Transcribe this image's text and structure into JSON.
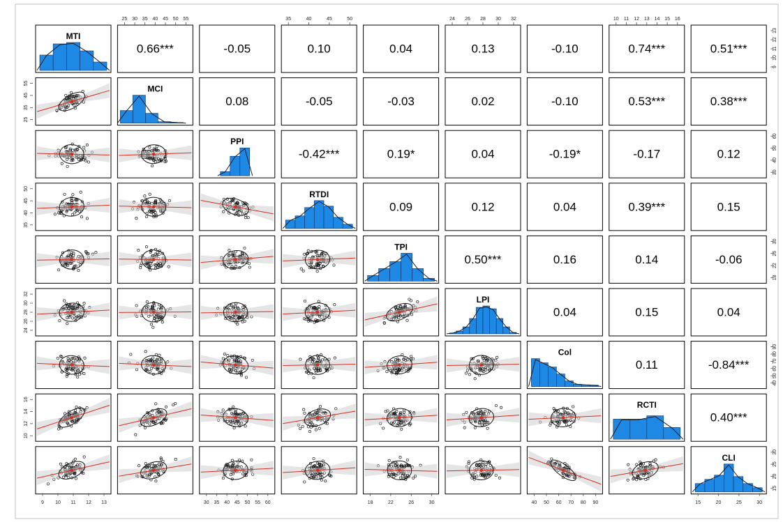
{
  "chart_data": {
    "type": "scatter-matrix",
    "title": "",
    "variables": [
      "MTI",
      "MCI",
      "PPI",
      "RTDI",
      "TPI",
      "LPI",
      "Col",
      "RCTI",
      "CLI"
    ],
    "correlations": [
      [
        "",
        "0.66***",
        "-0.05",
        "0.10",
        "0.04",
        "0.13",
        "-0.10",
        "0.74***",
        "0.51***"
      ],
      [
        "",
        "",
        "0.08",
        "-0.05",
        "-0.03",
        "0.02",
        "-0.10",
        "0.53***",
        "0.38***"
      ],
      [
        "",
        "",
        "",
        "-0.42***",
        "0.19*",
        "0.04",
        "-0.19*",
        "-0.17",
        "0.12"
      ],
      [
        "",
        "",
        "",
        "",
        "0.09",
        "0.12",
        "0.04",
        "0.39***",
        "0.15"
      ],
      [
        "",
        "",
        "",
        "",
        "",
        "0.50***",
        "0.16",
        "0.14",
        "-0.06"
      ],
      [
        "",
        "",
        "",
        "",
        "",
        "",
        "0.04",
        "0.15",
        "0.04"
      ],
      [
        "",
        "",
        "",
        "",
        "",
        "",
        "",
        "0.11",
        "-0.84***"
      ],
      [
        "",
        "",
        "",
        "",
        "",
        "",
        "",
        "",
        "0.40***"
      ],
      [
        "",
        "",
        "",
        "",
        "",
        "",
        "",
        "",
        ""
      ]
    ],
    "correlation_values": [
      [
        1,
        0.66,
        -0.05,
        0.1,
        0.04,
        0.13,
        -0.1,
        0.74,
        0.51
      ],
      [
        0.66,
        1,
        0.08,
        -0.05,
        -0.03,
        0.02,
        -0.1,
        0.53,
        0.38
      ],
      [
        -0.05,
        0.08,
        1,
        -0.42,
        0.19,
        0.04,
        -0.19,
        -0.17,
        0.12
      ],
      [
        0.1,
        -0.05,
        -0.42,
        1,
        0.09,
        0.12,
        0.04,
        0.39,
        0.15
      ],
      [
        0.04,
        -0.03,
        0.19,
        0.09,
        1,
        0.5,
        0.16,
        0.14,
        -0.06
      ],
      [
        0.13,
        0.02,
        0.04,
        0.12,
        0.5,
        1,
        0.04,
        0.15,
        0.04
      ],
      [
        -0.1,
        -0.1,
        -0.19,
        0.04,
        0.16,
        0.04,
        1,
        0.11,
        -0.84
      ],
      [
        0.74,
        0.53,
        -0.17,
        0.39,
        0.14,
        0.15,
        0.11,
        1,
        0.4
      ],
      [
        0.51,
        0.38,
        0.12,
        0.15,
        -0.06,
        0.04,
        -0.84,
        0.4,
        1
      ]
    ],
    "histograms": {
      "MTI": [
        0.55,
        0.95,
        1.0,
        0.7,
        0.3
      ],
      "MCI": [
        0.45,
        1.0,
        0.35,
        0.05,
        0.02
      ],
      "PPI": [
        0.15,
        0.7,
        1.0
      ],
      "RTDI": [
        0.3,
        0.45,
        0.75,
        1.0,
        0.8,
        0.4,
        0.15
      ],
      "TPI": [
        0.2,
        0.45,
        0.7,
        1.0,
        0.45,
        0.1
      ],
      "LPI": [
        0.03,
        0.1,
        0.25,
        0.55,
        0.95,
        1.0,
        0.9,
        0.55,
        0.25,
        0.05
      ],
      "Col": [
        1.0,
        0.85,
        0.7,
        0.45,
        0.2,
        0.08,
        0.06,
        0.05
      ],
      "RCTI": [
        0.72,
        0.72,
        0.84,
        0.42
      ],
      "CLI": [
        0.3,
        0.45,
        0.6,
        1.0,
        0.55,
        0.3,
        0.15
      ]
    },
    "axes": {
      "top": {
        "MCI": [
          "25",
          "30",
          "35",
          "40",
          "45",
          "50",
          "55"
        ],
        "RTDI": [
          "35",
          "40",
          "45",
          "50"
        ],
        "LPI": [
          "24",
          "26",
          "28",
          "30",
          "32"
        ],
        "RCTI": [
          "10",
          "11",
          "12",
          "13",
          "14",
          "15",
          "16"
        ]
      },
      "bottom": {
        "MTI": [
          "9",
          "10",
          "11",
          "12",
          "13"
        ],
        "PPI": [
          "30",
          "35",
          "40",
          "45",
          "50",
          "55",
          "60"
        ],
        "TPI": [
          "18",
          "22",
          "26",
          "30"
        ],
        "Col": [
          "40",
          "50",
          "60",
          "70",
          "80",
          "90"
        ],
        "CLI": [
          "15",
          "20",
          "25",
          "30"
        ]
      },
      "left": {
        "MCI": [
          "25",
          "35",
          "45",
          "55"
        ],
        "RTDI": [
          "35",
          "40",
          "45",
          "50"
        ],
        "LPI": [
          "24",
          "26",
          "28",
          "30",
          "32"
        ],
        "RCTI": [
          "10",
          "12",
          "14",
          "16"
        ]
      },
      "right": {
        "MTI": [
          "9",
          "10",
          "11",
          "12",
          "13"
        ],
        "PPI": [
          "30",
          "40",
          "50",
          "60"
        ],
        "TPI": [
          "18",
          "22",
          "26",
          "30"
        ],
        "Col": [
          "40",
          "50",
          "60",
          "70",
          "80",
          "90"
        ],
        "CLI": [
          "15",
          "20",
          "25",
          "30"
        ]
      }
    },
    "scatter_trend": "red loess line with grey confidence band, correlation ellipse with red centroid",
    "grid": false,
    "legend": "none",
    "colors": {
      "histogram": "#1e88e5",
      "loess": "#d62d20",
      "band": "#cfcfcf",
      "points": "#1a1a1a"
    }
  }
}
